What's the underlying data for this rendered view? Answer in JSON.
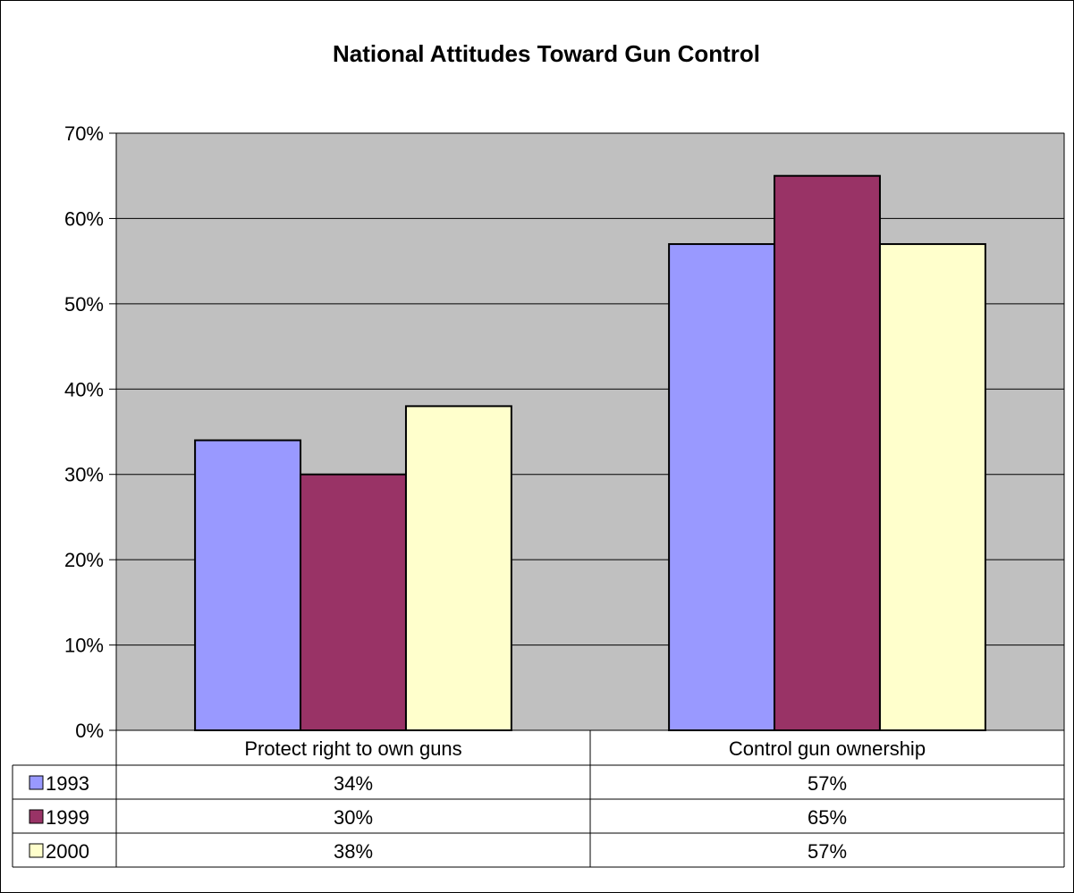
{
  "chart_data": {
    "type": "bar",
    "title": "National Attitudes Toward Gun Control",
    "categories": [
      "Protect right to own guns",
      "Control gun ownership"
    ],
    "series": [
      {
        "name": "1993",
        "values": [
          34,
          57
        ],
        "labels": [
          "34%",
          "57%"
        ],
        "color": "#9999ff"
      },
      {
        "name": "1999",
        "values": [
          30,
          65
        ],
        "labels": [
          "30%",
          "65%"
        ],
        "color": "#993366"
      },
      {
        "name": "2000",
        "values": [
          38,
          57
        ],
        "labels": [
          "38%",
          "57%"
        ],
        "color": "#ffffcc"
      }
    ],
    "ylim": [
      0,
      70
    ],
    "yticks": [
      0,
      10,
      20,
      30,
      40,
      50,
      60,
      70
    ],
    "ytick_labels": [
      "0%",
      "10%",
      "20%",
      "30%",
      "40%",
      "50%",
      "60%",
      "70%"
    ],
    "grid": true,
    "plot_background": "#c0c0c0",
    "legend": "data-table"
  }
}
